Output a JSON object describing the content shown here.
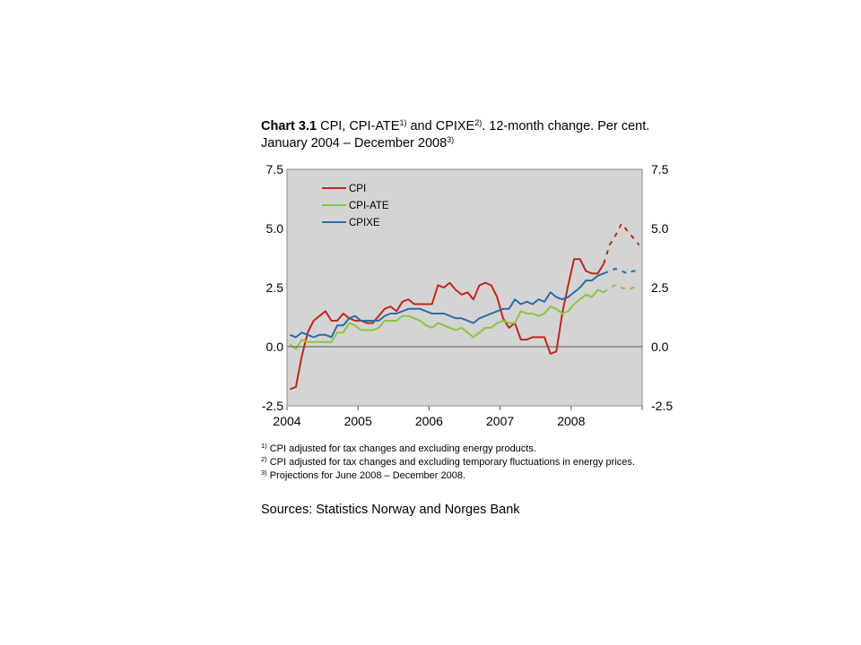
{
  "title": {
    "bold": "Chart 3.1",
    "part1": " CPI, CPI-ATE",
    "sup1": "1)",
    "part2": " and CPIXE",
    "sup2": "2)",
    "part3": ". 12-month change. Per cent. January 2004 – December 2008",
    "sup3": "3)"
  },
  "footnotes": [
    {
      "mark": "1)",
      "text": " CPI adjusted for tax changes and excluding energy products."
    },
    {
      "mark": "2)",
      "text": " CPI adjusted for tax changes and excluding temporary fluctuations in energy prices."
    },
    {
      "mark": "3)",
      "text": " Projections for June 2008 – December 2008."
    }
  ],
  "sources": "Sources: Statistics Norway and Norges Bank",
  "chart_data": {
    "type": "line",
    "x_start": "2004-01",
    "x_end": "2008-12",
    "frequency": "monthly",
    "x_tick_labels": [
      "2004",
      "2005",
      "2006",
      "2007",
      "2008"
    ],
    "ylim": [
      -2.5,
      7.5
    ],
    "y_ticks": [
      "7.5",
      "5.0",
      "2.5",
      "0.0",
      "-2.5"
    ],
    "right_axis_ticks": [
      "7.5",
      "5.0",
      "2.5",
      "0.0",
      "-2.5"
    ],
    "grid": false,
    "background": "#d4d4d4",
    "legend_position": "top-left",
    "projection_start": "2008-06",
    "series": [
      {
        "name": "CPI",
        "color": "#c0261c",
        "values": [
          -1.8,
          -1.7,
          -0.4,
          0.6,
          1.1,
          1.3,
          1.5,
          1.1,
          1.1,
          1.4,
          1.2,
          1.1,
          1.1,
          1.0,
          1.0,
          1.3,
          1.6,
          1.7,
          1.5,
          1.9,
          2.0,
          1.8,
          1.8,
          1.8,
          1.8,
          2.6,
          2.5,
          2.7,
          2.4,
          2.2,
          2.3,
          2.0,
          2.6,
          2.7,
          2.6,
          2.1,
          1.2,
          0.8,
          1.0,
          0.3,
          0.3,
          0.4,
          0.4,
          0.4,
          -0.3,
          -0.2,
          1.4,
          2.6,
          3.7,
          3.7,
          3.2,
          3.1,
          3.1,
          3.5,
          4.3,
          4.7,
          5.2,
          4.9,
          4.6,
          4.3
        ]
      },
      {
        "name": "CPI-ATE",
        "color": "#8dc63f",
        "values": [
          0.1,
          -0.1,
          0.3,
          0.2,
          0.2,
          0.2,
          0.2,
          0.2,
          0.6,
          0.6,
          1.0,
          0.9,
          0.7,
          0.7,
          0.7,
          0.8,
          1.1,
          1.1,
          1.1,
          1.3,
          1.3,
          1.2,
          1.1,
          0.9,
          0.8,
          1.0,
          0.9,
          0.8,
          0.7,
          0.8,
          0.6,
          0.4,
          0.6,
          0.8,
          0.8,
          1.0,
          1.1,
          1.0,
          1.0,
          1.5,
          1.4,
          1.4,
          1.3,
          1.4,
          1.7,
          1.6,
          1.4,
          1.5,
          1.8,
          2.0,
          2.2,
          2.1,
          2.4,
          2.3,
          2.5,
          2.6,
          2.5,
          2.4,
          2.5,
          2.5
        ]
      },
      {
        "name": "CPIXE",
        "color": "#2e6ca4",
        "values": [
          0.5,
          0.4,
          0.6,
          0.5,
          0.4,
          0.5,
          0.5,
          0.4,
          0.9,
          0.9,
          1.2,
          1.3,
          1.1,
          1.1,
          1.1,
          1.1,
          1.3,
          1.4,
          1.4,
          1.5,
          1.6,
          1.6,
          1.6,
          1.5,
          1.4,
          1.4,
          1.4,
          1.3,
          1.2,
          1.2,
          1.1,
          1.0,
          1.2,
          1.3,
          1.4,
          1.5,
          1.6,
          1.6,
          2.0,
          1.8,
          1.9,
          1.8,
          2.0,
          1.9,
          2.3,
          2.1,
          2.0,
          2.1,
          2.3,
          2.5,
          2.8,
          2.8,
          3.0,
          3.1,
          3.2,
          3.3,
          3.2,
          3.1,
          3.2,
          3.2
        ]
      }
    ]
  }
}
